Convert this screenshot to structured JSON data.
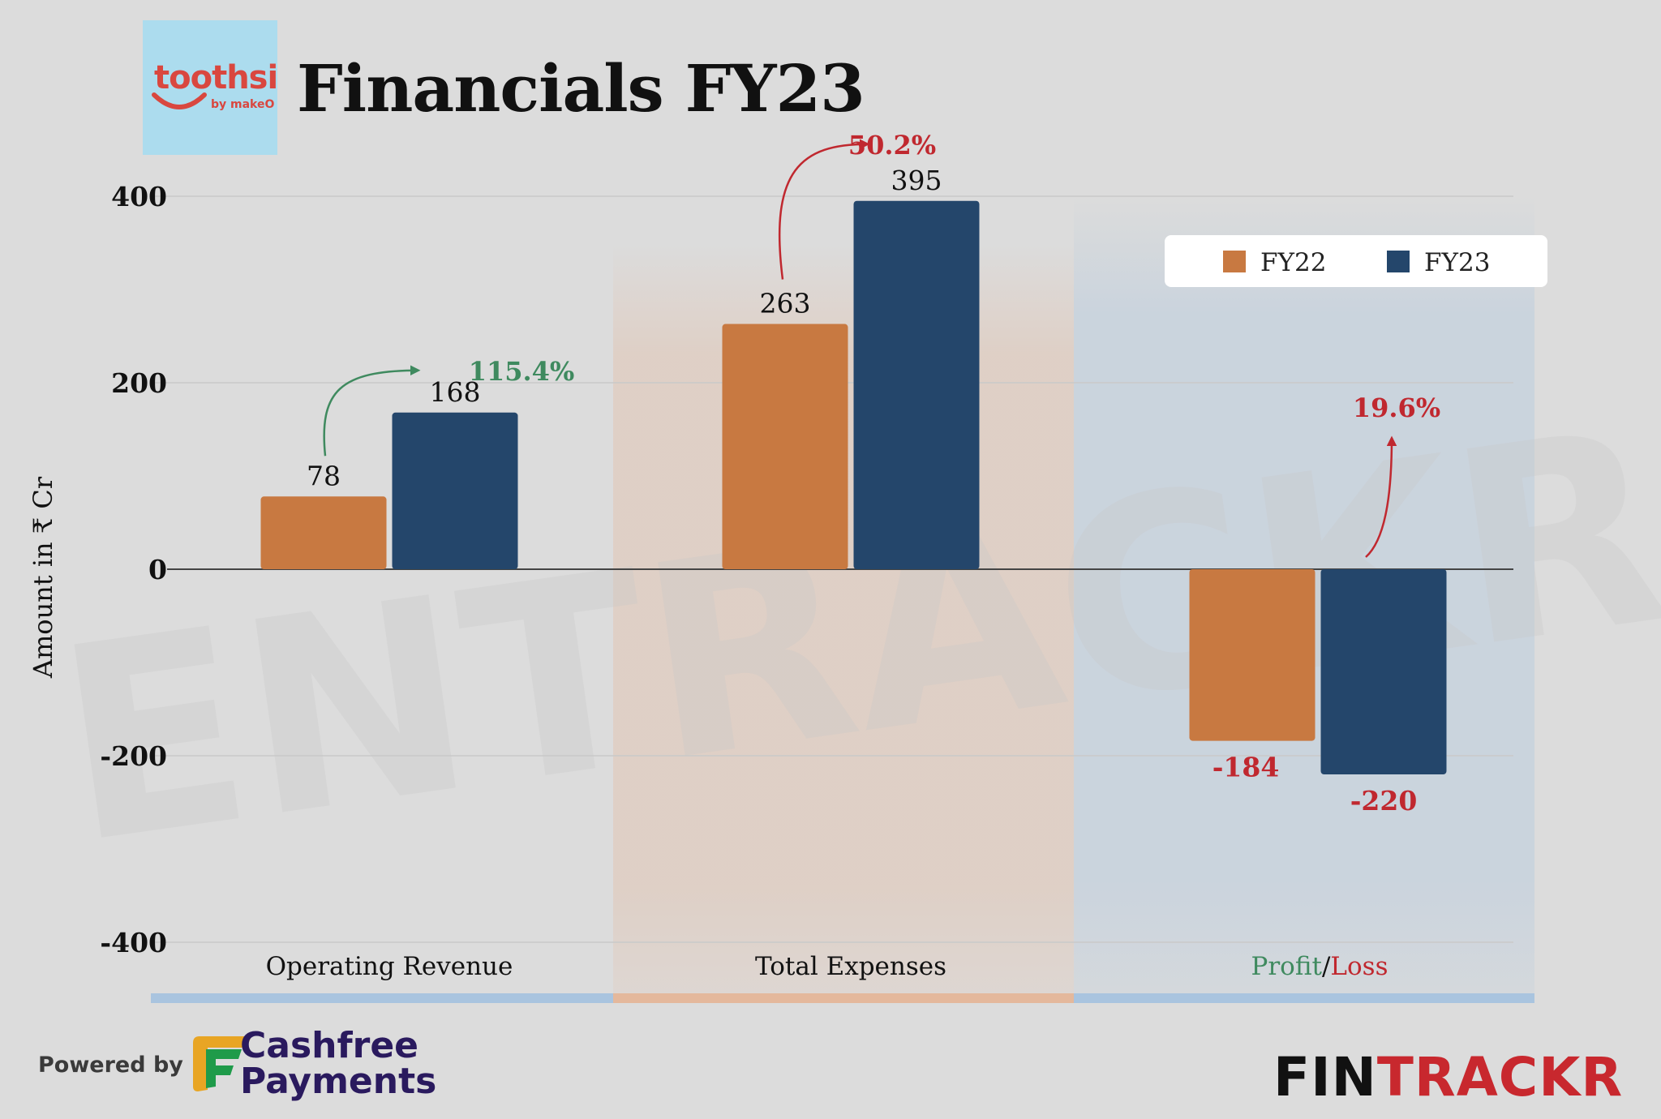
{
  "header": {
    "logo_name": "toothsi",
    "logo_sub": "by makeO",
    "title": "Financials FY23"
  },
  "footer": {
    "powered_by": "Powered by",
    "partner_line1": "Cashfree",
    "partner_line2": "Payments",
    "brand_part1": "FIN",
    "brand_part2": "TRACKR"
  },
  "watermark": "ENTRACKR",
  "chart_data": {
    "type": "bar",
    "title": "Financials FY23",
    "ylabel": "Amount in ₹ Cr",
    "ylim": [
      -400,
      400
    ],
    "yticks": [
      400,
      200,
      0,
      -200,
      -400
    ],
    "categories": [
      "Operating Revenue",
      "Total Expenses",
      "Profit/Loss"
    ],
    "category_label_parts": [
      [
        "Operating Revenue"
      ],
      [
        "Total Expenses"
      ],
      [
        "Profit",
        "/",
        "Loss"
      ]
    ],
    "series": [
      {
        "name": "FY22",
        "values": [
          78,
          263,
          -184
        ]
      },
      {
        "name": "FY23",
        "values": [
          168,
          395,
          -220
        ]
      }
    ],
    "data_labels": [
      [
        "78",
        "263",
        "-184"
      ],
      [
        "168",
        "395",
        "-220"
      ]
    ],
    "growth_labels": [
      "115.4%",
      "50.2%",
      "19.6%"
    ],
    "legend": "top-right",
    "colors": {
      "FY22": "#c87941",
      "FY23": "#24466b",
      "positive": "#3f8a5f",
      "negative": "#c0282f",
      "band_revenue": "#a9c4df",
      "band_expenses": "#e4b89c",
      "band_profit": "#a9c4df"
    }
  }
}
